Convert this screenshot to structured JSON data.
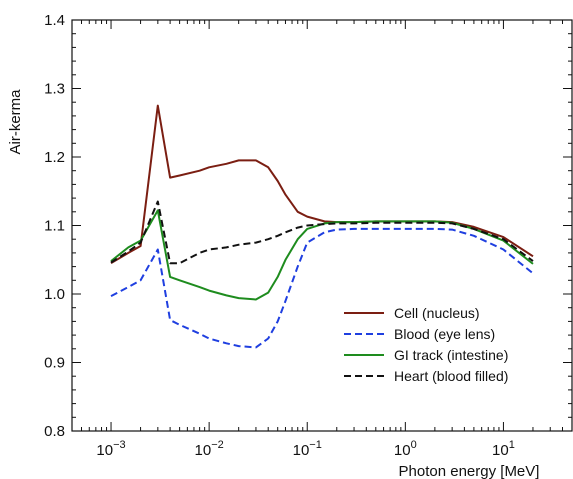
{
  "chart_data": {
    "type": "line",
    "title": "",
    "xlabel": "Photon energy [MeV]",
    "ylabel": "Air-kerma",
    "xscale": "log",
    "xlim": [
      0.0004,
      50
    ],
    "ylim": [
      0.8,
      1.4
    ],
    "x_ticks": [
      {
        "value": 0.001,
        "base": "10",
        "exp": "−3"
      },
      {
        "value": 0.01,
        "base": "10",
        "exp": "−2"
      },
      {
        "value": 0.1,
        "base": "10",
        "exp": "−1"
      },
      {
        "value": 1,
        "base": "10",
        "exp": "0"
      },
      {
        "value": 10,
        "base": "10",
        "exp": "1"
      }
    ],
    "y_ticks": [
      "0.8",
      "0.9",
      "1.0",
      "1.1",
      "1.2",
      "1.3",
      "1.4"
    ],
    "grid": false,
    "legend_position": "bottom-right",
    "series": [
      {
        "name": "Cell (nucleus)",
        "color": "#7b1e12",
        "dash": "solid",
        "x": [
          0.001,
          0.0015,
          0.002,
          0.003,
          0.004,
          0.005,
          0.008,
          0.01,
          0.015,
          0.02,
          0.03,
          0.04,
          0.05,
          0.06,
          0.08,
          0.1,
          0.15,
          0.2,
          0.3,
          0.5,
          1,
          2,
          3,
          5,
          10,
          20
        ],
        "y": [
          1.045,
          1.06,
          1.07,
          1.275,
          1.17,
          1.173,
          1.18,
          1.185,
          1.19,
          1.195,
          1.195,
          1.185,
          1.165,
          1.145,
          1.12,
          1.113,
          1.106,
          1.105,
          1.105,
          1.106,
          1.106,
          1.106,
          1.105,
          1.098,
          1.083,
          1.055
        ]
      },
      {
        "name": "Blood (eye lens)",
        "color": "#1f3fe0",
        "dash": "dashed",
        "x": [
          0.001,
          0.0015,
          0.002,
          0.003,
          0.004,
          0.005,
          0.008,
          0.01,
          0.015,
          0.02,
          0.03,
          0.04,
          0.05,
          0.06,
          0.08,
          0.1,
          0.15,
          0.2,
          0.3,
          0.5,
          1,
          2,
          3,
          5,
          10,
          20
        ],
        "y": [
          0.997,
          1.01,
          1.02,
          1.065,
          0.962,
          0.955,
          0.942,
          0.935,
          0.928,
          0.924,
          0.922,
          0.935,
          0.96,
          0.99,
          1.04,
          1.075,
          1.09,
          1.094,
          1.095,
          1.095,
          1.095,
          1.095,
          1.094,
          1.085,
          1.065,
          1.03
        ]
      },
      {
        "name": "GI track (intestine)",
        "color": "#1e8c1e",
        "dash": "solid",
        "x": [
          0.001,
          0.0015,
          0.002,
          0.003,
          0.004,
          0.005,
          0.008,
          0.01,
          0.015,
          0.02,
          0.03,
          0.04,
          0.05,
          0.06,
          0.08,
          0.1,
          0.15,
          0.2,
          0.3,
          0.5,
          1,
          2,
          3,
          5,
          10,
          20
        ],
        "y": [
          1.048,
          1.068,
          1.078,
          1.122,
          1.025,
          1.02,
          1.01,
          1.005,
          0.998,
          0.994,
          0.992,
          1.002,
          1.025,
          1.05,
          1.08,
          1.095,
          1.103,
          1.105,
          1.105,
          1.106,
          1.106,
          1.106,
          1.104,
          1.095,
          1.078,
          1.044
        ]
      },
      {
        "name": "Heart (blood filled)",
        "color": "#111111",
        "dash": "dashed",
        "x": [
          0.001,
          0.0015,
          0.002,
          0.003,
          0.004,
          0.005,
          0.008,
          0.01,
          0.015,
          0.02,
          0.03,
          0.04,
          0.05,
          0.06,
          0.08,
          0.1,
          0.15,
          0.2,
          0.3,
          0.5,
          1,
          2,
          3,
          5,
          10,
          20
        ],
        "y": [
          1.046,
          1.062,
          1.075,
          1.135,
          1.045,
          1.045,
          1.06,
          1.065,
          1.068,
          1.072,
          1.075,
          1.08,
          1.085,
          1.09,
          1.097,
          1.1,
          1.102,
          1.103,
          1.103,
          1.104,
          1.104,
          1.104,
          1.103,
          1.095,
          1.08,
          1.048
        ]
      }
    ]
  }
}
